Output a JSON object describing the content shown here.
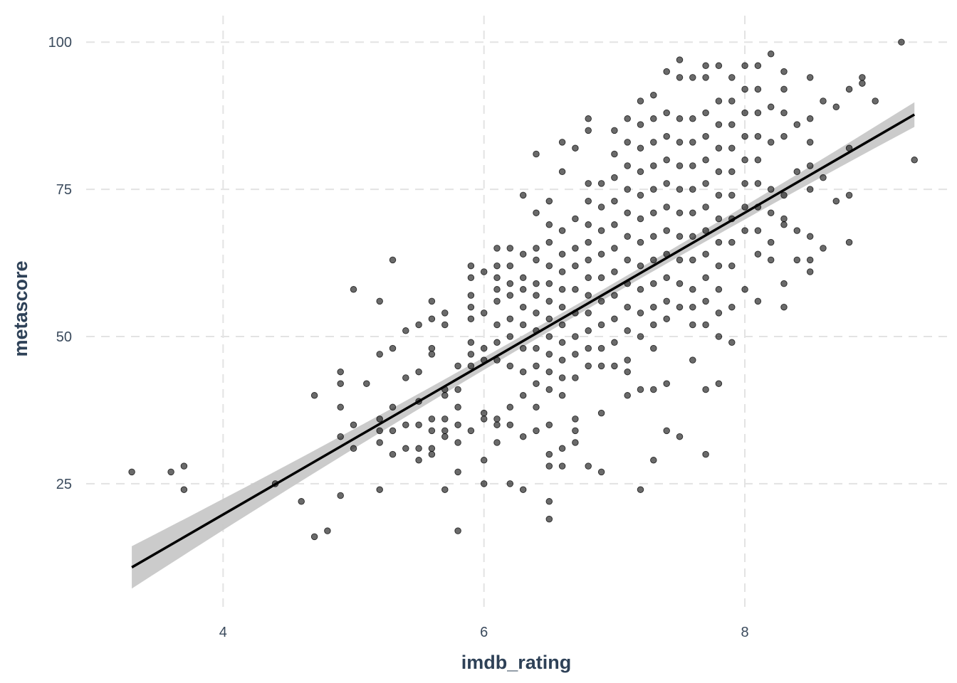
{
  "chart_data": {
    "type": "scatter",
    "title": "",
    "xlabel": "imdb_rating",
    "ylabel": "metascore",
    "xlim": [
      2.95,
      9.55
    ],
    "ylim": [
      3.0,
      104.5
    ],
    "x_ticks": [
      4,
      6,
      8
    ],
    "x_tick_labels": [
      "4",
      "6",
      "8"
    ],
    "y_ticks": [
      25,
      50,
      75,
      100
    ],
    "y_tick_labels": [
      "25",
      "50",
      "75",
      "100"
    ],
    "grid": true,
    "legend": "none",
    "point_color": "#1a1a1a",
    "point_opacity": 0.65,
    "points": [
      [
        3.3,
        27
      ],
      [
        3.6,
        27
      ],
      [
        3.7,
        28
      ],
      [
        3.7,
        24
      ],
      [
        4.4,
        25
      ],
      [
        4.6,
        22
      ],
      [
        4.7,
        40
      ],
      [
        4.7,
        16
      ],
      [
        4.8,
        17
      ],
      [
        4.9,
        44
      ],
      [
        4.9,
        42
      ],
      [
        4.9,
        38
      ],
      [
        4.9,
        33
      ],
      [
        4.9,
        23
      ],
      [
        5.0,
        58
      ],
      [
        5.0,
        35
      ],
      [
        5.0,
        31
      ],
      [
        5.1,
        42
      ],
      [
        5.2,
        56
      ],
      [
        5.2,
        47
      ],
      [
        5.2,
        36
      ],
      [
        5.2,
        34
      ],
      [
        5.2,
        32
      ],
      [
        5.2,
        24
      ],
      [
        5.3,
        63
      ],
      [
        5.3,
        48
      ],
      [
        5.3,
        38
      ],
      [
        5.3,
        34
      ],
      [
        5.3,
        30
      ],
      [
        5.4,
        51
      ],
      [
        5.4,
        43
      ],
      [
        5.4,
        35
      ],
      [
        5.4,
        31
      ],
      [
        5.5,
        52
      ],
      [
        5.5,
        44
      ],
      [
        5.5,
        39
      ],
      [
        5.5,
        35
      ],
      [
        5.5,
        31
      ],
      [
        5.5,
        29
      ],
      [
        5.6,
        56
      ],
      [
        5.6,
        53
      ],
      [
        5.6,
        48
      ],
      [
        5.6,
        47
      ],
      [
        5.6,
        36
      ],
      [
        5.6,
        34
      ],
      [
        5.6,
        31
      ],
      [
        5.6,
        30
      ],
      [
        5.7,
        54
      ],
      [
        5.7,
        52
      ],
      [
        5.7,
        41
      ],
      [
        5.7,
        40
      ],
      [
        5.7,
        36
      ],
      [
        5.7,
        34
      ],
      [
        5.7,
        33
      ],
      [
        5.7,
        24
      ],
      [
        5.8,
        45
      ],
      [
        5.8,
        41
      ],
      [
        5.8,
        38
      ],
      [
        5.8,
        35
      ],
      [
        5.8,
        32
      ],
      [
        5.8,
        27
      ],
      [
        5.8,
        17
      ],
      [
        5.9,
        62
      ],
      [
        5.9,
        60
      ],
      [
        5.9,
        57
      ],
      [
        5.9,
        55
      ],
      [
        5.9,
        53
      ],
      [
        5.9,
        49
      ],
      [
        5.9,
        47
      ],
      [
        5.9,
        45
      ],
      [
        5.9,
        34
      ],
      [
        6.0,
        61
      ],
      [
        6.0,
        54
      ],
      [
        6.0,
        48
      ],
      [
        6.0,
        46
      ],
      [
        6.0,
        37
      ],
      [
        6.0,
        36
      ],
      [
        6.0,
        29
      ],
      [
        6.0,
        25
      ],
      [
        6.1,
        65
      ],
      [
        6.1,
        62
      ],
      [
        6.1,
        60
      ],
      [
        6.1,
        58
      ],
      [
        6.1,
        56
      ],
      [
        6.1,
        52
      ],
      [
        6.1,
        49
      ],
      [
        6.1,
        46
      ],
      [
        6.1,
        36
      ],
      [
        6.1,
        35
      ],
      [
        6.1,
        32
      ],
      [
        6.2,
        65
      ],
      [
        6.2,
        62
      ],
      [
        6.2,
        59
      ],
      [
        6.2,
        57
      ],
      [
        6.2,
        53
      ],
      [
        6.2,
        50
      ],
      [
        6.2,
        45
      ],
      [
        6.2,
        38
      ],
      [
        6.2,
        35
      ],
      [
        6.2,
        25
      ],
      [
        6.3,
        74
      ],
      [
        6.3,
        64
      ],
      [
        6.3,
        60
      ],
      [
        6.3,
        58
      ],
      [
        6.3,
        55
      ],
      [
        6.3,
        52
      ],
      [
        6.3,
        48
      ],
      [
        6.3,
        44
      ],
      [
        6.3,
        40
      ],
      [
        6.3,
        33
      ],
      [
        6.3,
        24
      ],
      [
        6.4,
        81
      ],
      [
        6.4,
        71
      ],
      [
        6.4,
        65
      ],
      [
        6.4,
        63
      ],
      [
        6.4,
        59
      ],
      [
        6.4,
        57
      ],
      [
        6.4,
        54
      ],
      [
        6.4,
        51
      ],
      [
        6.4,
        48
      ],
      [
        6.4,
        45
      ],
      [
        6.4,
        42
      ],
      [
        6.4,
        38
      ],
      [
        6.4,
        34
      ],
      [
        6.5,
        73
      ],
      [
        6.5,
        69
      ],
      [
        6.5,
        66
      ],
      [
        6.5,
        62
      ],
      [
        6.5,
        59
      ],
      [
        6.5,
        56
      ],
      [
        6.5,
        53
      ],
      [
        6.5,
        50
      ],
      [
        6.5,
        47
      ],
      [
        6.5,
        44
      ],
      [
        6.5,
        41
      ],
      [
        6.5,
        35
      ],
      [
        6.5,
        30
      ],
      [
        6.5,
        28
      ],
      [
        6.5,
        22
      ],
      [
        6.5,
        19
      ],
      [
        6.6,
        83
      ],
      [
        6.6,
        78
      ],
      [
        6.6,
        68
      ],
      [
        6.6,
        64
      ],
      [
        6.6,
        61
      ],
      [
        6.6,
        58
      ],
      [
        6.6,
        55
      ],
      [
        6.6,
        52
      ],
      [
        6.6,
        49
      ],
      [
        6.6,
        46
      ],
      [
        6.6,
        43
      ],
      [
        6.6,
        40
      ],
      [
        6.6,
        31
      ],
      [
        6.6,
        28
      ],
      [
        6.7,
        82
      ],
      [
        6.7,
        70
      ],
      [
        6.7,
        65
      ],
      [
        6.7,
        62
      ],
      [
        6.7,
        58
      ],
      [
        6.7,
        54
      ],
      [
        6.7,
        50
      ],
      [
        6.7,
        47
      ],
      [
        6.7,
        43
      ],
      [
        6.7,
        36
      ],
      [
        6.7,
        34
      ],
      [
        6.7,
        32
      ],
      [
        6.8,
        87
      ],
      [
        6.8,
        85
      ],
      [
        6.8,
        76
      ],
      [
        6.8,
        73
      ],
      [
        6.8,
        69
      ],
      [
        6.8,
        66
      ],
      [
        6.8,
        63
      ],
      [
        6.8,
        60
      ],
      [
        6.8,
        57
      ],
      [
        6.8,
        54
      ],
      [
        6.8,
        51
      ],
      [
        6.8,
        48
      ],
      [
        6.8,
        45
      ],
      [
        6.8,
        28
      ],
      [
        6.9,
        76
      ],
      [
        6.9,
        72
      ],
      [
        6.9,
        68
      ],
      [
        6.9,
        64
      ],
      [
        6.9,
        60
      ],
      [
        6.9,
        56
      ],
      [
        6.9,
        52
      ],
      [
        6.9,
        48
      ],
      [
        6.9,
        45
      ],
      [
        6.9,
        37
      ],
      [
        6.9,
        27
      ],
      [
        7.0,
        85
      ],
      [
        7.0,
        81
      ],
      [
        7.0,
        77
      ],
      [
        7.0,
        73
      ],
      [
        7.0,
        69
      ],
      [
        7.0,
        65
      ],
      [
        7.0,
        61
      ],
      [
        7.0,
        57
      ],
      [
        7.0,
        53
      ],
      [
        7.0,
        49
      ],
      [
        7.0,
        45
      ],
      [
        7.1,
        87
      ],
      [
        7.1,
        83
      ],
      [
        7.1,
        79
      ],
      [
        7.1,
        75
      ],
      [
        7.1,
        71
      ],
      [
        7.1,
        67
      ],
      [
        7.1,
        63
      ],
      [
        7.1,
        59
      ],
      [
        7.1,
        55
      ],
      [
        7.1,
        51
      ],
      [
        7.1,
        46
      ],
      [
        7.1,
        44
      ],
      [
        7.1,
        40
      ],
      [
        7.2,
        90
      ],
      [
        7.2,
        86
      ],
      [
        7.2,
        82
      ],
      [
        7.2,
        78
      ],
      [
        7.2,
        74
      ],
      [
        7.2,
        70
      ],
      [
        7.2,
        66
      ],
      [
        7.2,
        62
      ],
      [
        7.2,
        58
      ],
      [
        7.2,
        54
      ],
      [
        7.2,
        50
      ],
      [
        7.2,
        41
      ],
      [
        7.2,
        24
      ],
      [
        7.3,
        91
      ],
      [
        7.3,
        87
      ],
      [
        7.3,
        83
      ],
      [
        7.3,
        79
      ],
      [
        7.3,
        75
      ],
      [
        7.3,
        71
      ],
      [
        7.3,
        67
      ],
      [
        7.3,
        63
      ],
      [
        7.3,
        59
      ],
      [
        7.3,
        55
      ],
      [
        7.3,
        52
      ],
      [
        7.3,
        48
      ],
      [
        7.3,
        41
      ],
      [
        7.3,
        29
      ],
      [
        7.4,
        95
      ],
      [
        7.4,
        88
      ],
      [
        7.4,
        84
      ],
      [
        7.4,
        80
      ],
      [
        7.4,
        76
      ],
      [
        7.4,
        72
      ],
      [
        7.4,
        68
      ],
      [
        7.4,
        64
      ],
      [
        7.4,
        60
      ],
      [
        7.4,
        56
      ],
      [
        7.4,
        53
      ],
      [
        7.4,
        42
      ],
      [
        7.4,
        34
      ],
      [
        7.5,
        97
      ],
      [
        7.5,
        94
      ],
      [
        7.5,
        87
      ],
      [
        7.5,
        83
      ],
      [
        7.5,
        79
      ],
      [
        7.5,
        75
      ],
      [
        7.5,
        71
      ],
      [
        7.5,
        67
      ],
      [
        7.5,
        63
      ],
      [
        7.5,
        59
      ],
      [
        7.5,
        55
      ],
      [
        7.5,
        33
      ],
      [
        7.6,
        94
      ],
      [
        7.6,
        87
      ],
      [
        7.6,
        83
      ],
      [
        7.6,
        79
      ],
      [
        7.6,
        75
      ],
      [
        7.6,
        71
      ],
      [
        7.6,
        67
      ],
      [
        7.6,
        63
      ],
      [
        7.6,
        58
      ],
      [
        7.6,
        55
      ],
      [
        7.6,
        52
      ],
      [
        7.6,
        46
      ],
      [
        7.7,
        96
      ],
      [
        7.7,
        94
      ],
      [
        7.7,
        88
      ],
      [
        7.7,
        84
      ],
      [
        7.7,
        80
      ],
      [
        7.7,
        76
      ],
      [
        7.7,
        72
      ],
      [
        7.7,
        68
      ],
      [
        7.7,
        64
      ],
      [
        7.7,
        60
      ],
      [
        7.7,
        56
      ],
      [
        7.7,
        52
      ],
      [
        7.7,
        41
      ],
      [
        7.7,
        30
      ],
      [
        7.8,
        96
      ],
      [
        7.8,
        90
      ],
      [
        7.8,
        86
      ],
      [
        7.8,
        82
      ],
      [
        7.8,
        78
      ],
      [
        7.8,
        74
      ],
      [
        7.8,
        70
      ],
      [
        7.8,
        66
      ],
      [
        7.8,
        62
      ],
      [
        7.8,
        58
      ],
      [
        7.8,
        54
      ],
      [
        7.8,
        50
      ],
      [
        7.8,
        42
      ],
      [
        7.9,
        94
      ],
      [
        7.9,
        90
      ],
      [
        7.9,
        86
      ],
      [
        7.9,
        82
      ],
      [
        7.9,
        78
      ],
      [
        7.9,
        74
      ],
      [
        7.9,
        70
      ],
      [
        7.9,
        66
      ],
      [
        7.9,
        62
      ],
      [
        7.9,
        55
      ],
      [
        7.9,
        49
      ],
      [
        8.0,
        96
      ],
      [
        8.0,
        92
      ],
      [
        8.0,
        88
      ],
      [
        8.0,
        84
      ],
      [
        8.0,
        80
      ],
      [
        8.0,
        76
      ],
      [
        8.0,
        72
      ],
      [
        8.0,
        68
      ],
      [
        8.0,
        58
      ],
      [
        8.1,
        96
      ],
      [
        8.1,
        92
      ],
      [
        8.1,
        88
      ],
      [
        8.1,
        84
      ],
      [
        8.1,
        80
      ],
      [
        8.1,
        76
      ],
      [
        8.1,
        72
      ],
      [
        8.1,
        68
      ],
      [
        8.1,
        64
      ],
      [
        8.1,
        56
      ],
      [
        8.2,
        98
      ],
      [
        8.2,
        89
      ],
      [
        8.2,
        83
      ],
      [
        8.2,
        75
      ],
      [
        8.2,
        71
      ],
      [
        8.2,
        66
      ],
      [
        8.2,
        63
      ],
      [
        8.3,
        95
      ],
      [
        8.3,
        92
      ],
      [
        8.3,
        88
      ],
      [
        8.3,
        84
      ],
      [
        8.3,
        74
      ],
      [
        8.3,
        70
      ],
      [
        8.3,
        69
      ],
      [
        8.3,
        59
      ],
      [
        8.3,
        55
      ],
      [
        8.4,
        86
      ],
      [
        8.4,
        78
      ],
      [
        8.4,
        68
      ],
      [
        8.4,
        63
      ],
      [
        8.5,
        94
      ],
      [
        8.5,
        87
      ],
      [
        8.5,
        83
      ],
      [
        8.5,
        79
      ],
      [
        8.5,
        75
      ],
      [
        8.5,
        67
      ],
      [
        8.5,
        63
      ],
      [
        8.5,
        61
      ],
      [
        8.6,
        90
      ],
      [
        8.6,
        77
      ],
      [
        8.6,
        65
      ],
      [
        8.7,
        89
      ],
      [
        8.7,
        73
      ],
      [
        8.8,
        92
      ],
      [
        8.8,
        82
      ],
      [
        8.8,
        74
      ],
      [
        8.8,
        66
      ],
      [
        8.9,
        94
      ],
      [
        8.9,
        93
      ],
      [
        9.0,
        90
      ],
      [
        9.2,
        100
      ],
      [
        9.3,
        80
      ]
    ],
    "regression": {
      "method": "lm",
      "line_color": "#000000",
      "band_color": "#c8c8c8",
      "x": [
        3.3,
        9.3
      ],
      "y": [
        10.8,
        87.7
      ],
      "band_halfwidth_at_ends": 3.6,
      "band_halfwidth_at_center": 0.9,
      "x_center": 6.9
    }
  }
}
